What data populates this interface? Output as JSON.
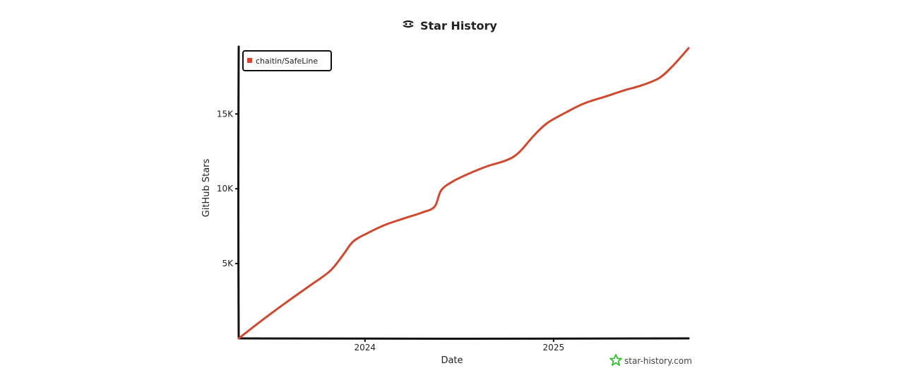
{
  "title": "Star History",
  "watermark": "star-history.com",
  "colors": {
    "series": "#d0492f",
    "axis": "#111111",
    "watermark_icon": "#35c135",
    "text": "#222222"
  },
  "icons": {
    "title": "star-history-logo-icon",
    "watermark": "star-outline-icon"
  },
  "chart_data": {
    "type": "line",
    "xlabel": "Date",
    "ylabel": "GitHub Stars",
    "x_ticks": [
      {
        "label": "2024",
        "date": "2024-01-01"
      },
      {
        "label": "2025",
        "date": "2025-01-01"
      }
    ],
    "y_ticks": [
      {
        "label": "5K",
        "value": 5000
      },
      {
        "label": "10K",
        "value": 10000
      },
      {
        "label": "15K",
        "value": 15000
      }
    ],
    "xlim": [
      "2023-05-01",
      "2025-09-20"
    ],
    "ylim": [
      0,
      19500
    ],
    "grid": false,
    "legend_position": "top-left",
    "series": [
      {
        "name": "chaitin/SafeLine",
        "color": "#d0492f",
        "points": [
          {
            "date": "2023-05-01",
            "stars": 0
          },
          {
            "date": "2023-06-15",
            "stars": 1200
          },
          {
            "date": "2023-08-01",
            "stars": 2400
          },
          {
            "date": "2023-09-15",
            "stars": 3500
          },
          {
            "date": "2023-10-25",
            "stars": 4500
          },
          {
            "date": "2023-11-20",
            "stars": 5600
          },
          {
            "date": "2023-12-10",
            "stars": 6500
          },
          {
            "date": "2024-01-10",
            "stars": 7100
          },
          {
            "date": "2024-02-10",
            "stars": 7600
          },
          {
            "date": "2024-03-15",
            "stars": 8000
          },
          {
            "date": "2024-04-20",
            "stars": 8400
          },
          {
            "date": "2024-05-15",
            "stars": 8800
          },
          {
            "date": "2024-05-28",
            "stars": 9900
          },
          {
            "date": "2024-06-20",
            "stars": 10500
          },
          {
            "date": "2024-07-20",
            "stars": 11000
          },
          {
            "date": "2024-08-25",
            "stars": 11500
          },
          {
            "date": "2024-10-01",
            "stars": 11900
          },
          {
            "date": "2024-10-25",
            "stars": 12400
          },
          {
            "date": "2024-11-25",
            "stars": 13600
          },
          {
            "date": "2024-12-20",
            "stars": 14400
          },
          {
            "date": "2025-01-25",
            "stars": 15100
          },
          {
            "date": "2025-03-01",
            "stars": 15700
          },
          {
            "date": "2025-04-15",
            "stars": 16200
          },
          {
            "date": "2025-05-20",
            "stars": 16600
          },
          {
            "date": "2025-06-20",
            "stars": 16900
          },
          {
            "date": "2025-07-25",
            "stars": 17400
          },
          {
            "date": "2025-08-20",
            "stars": 18200
          },
          {
            "date": "2025-09-20",
            "stars": 19400
          }
        ]
      }
    ]
  }
}
